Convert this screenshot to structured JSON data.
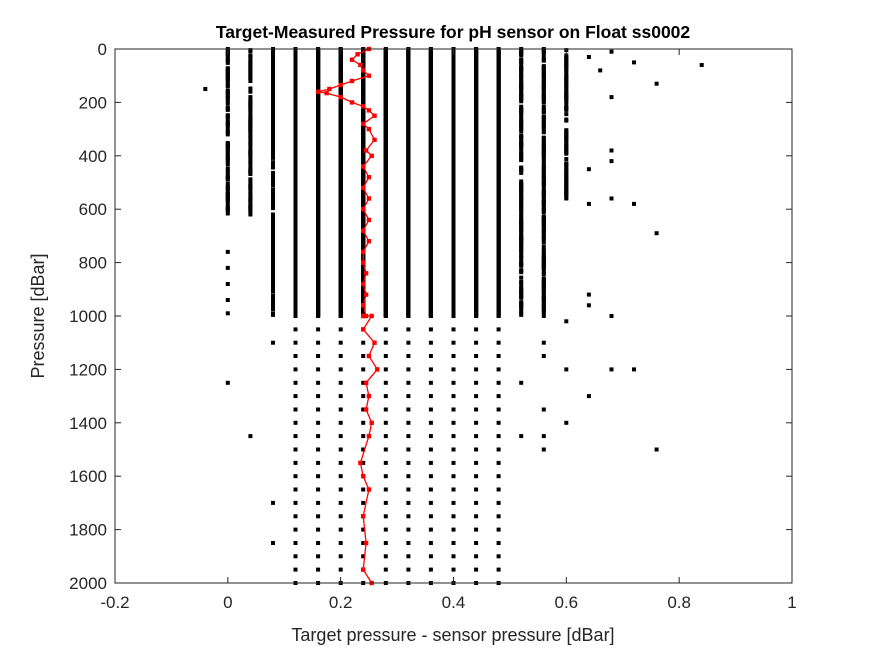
{
  "chart_data": {
    "type": "scatter",
    "title": "Target-Measured Pressure for pH sensor on Float ss0002",
    "xlabel": "Target pressure - sensor pressure [dBar]",
    "ylabel": "Pressure [dBar]",
    "xlim": [
      -0.2,
      1
    ],
    "ylim": [
      0,
      2000
    ],
    "y_reversed": true,
    "grid": false,
    "xticks": [
      -0.2,
      0,
      0.2,
      0.4,
      0.6,
      0.8,
      1
    ],
    "xtick_labels": [
      "-0.2",
      "0",
      "0.2",
      "0.4",
      "0.6",
      "0.8",
      "1"
    ],
    "yticks": [
      0,
      200,
      400,
      600,
      800,
      1000,
      1200,
      1400,
      1600,
      1800,
      2000
    ],
    "ytick_labels": [
      "0",
      "200",
      "400",
      "600",
      "800",
      "1000",
      "1200",
      "1400",
      "1600",
      "1800",
      "2000"
    ],
    "colors": {
      "scatter": "#000000",
      "mean_line": "#ff0000",
      "axes": "#262626"
    },
    "scatter_series": {
      "shallow_columns": [
        {
          "x": 0.12,
          "p_top": 0,
          "p_bottom": 1000,
          "dense": true
        },
        {
          "x": 0.16,
          "p_top": 0,
          "p_bottom": 1000,
          "dense": true
        },
        {
          "x": 0.2,
          "p_top": 0,
          "p_bottom": 1000,
          "dense": true
        },
        {
          "x": 0.24,
          "p_top": 0,
          "p_bottom": 1000,
          "dense": true
        },
        {
          "x": 0.28,
          "p_top": 0,
          "p_bottom": 1000,
          "dense": true
        },
        {
          "x": 0.32,
          "p_top": 0,
          "p_bottom": 1000,
          "dense": true
        },
        {
          "x": 0.36,
          "p_top": 0,
          "p_bottom": 1000,
          "dense": true
        },
        {
          "x": 0.4,
          "p_top": 0,
          "p_bottom": 1000,
          "dense": true
        },
        {
          "x": 0.44,
          "p_top": 0,
          "p_bottom": 1000,
          "dense": true
        },
        {
          "x": 0.48,
          "p_top": 0,
          "p_bottom": 1000,
          "dense": true
        },
        {
          "x": 0.08,
          "p_top": 0,
          "p_bottom": 1000,
          "dense": false
        },
        {
          "x": 0.52,
          "p_top": 0,
          "p_bottom": 1000,
          "dense": false
        },
        {
          "x": 0.04,
          "p_top": 0,
          "p_bottom": 620,
          "dense": false
        },
        {
          "x": 0.56,
          "p_top": 0,
          "p_bottom": 1000,
          "dense": false
        },
        {
          "x": 0.6,
          "p_top": 0,
          "p_bottom": 560,
          "dense": false
        },
        {
          "x": 0.0,
          "p_top": 0,
          "p_bottom": 620,
          "dense": false
        }
      ],
      "deep_grid": {
        "x": [
          0.12,
          0.16,
          0.2,
          0.24,
          0.28,
          0.32,
          0.36,
          0.4,
          0.44,
          0.48
        ],
        "p_from": 1000,
        "p_to": 2000,
        "p_step": 50
      },
      "scattered_points": [
        {
          "x": -0.04,
          "y": 150
        },
        {
          "x": 0.72,
          "y": 50
        },
        {
          "x": 0.84,
          "y": 60
        },
        {
          "x": 0.64,
          "y": 30
        },
        {
          "x": 0.68,
          "y": 10
        },
        {
          "x": 0.68,
          "y": 180
        },
        {
          "x": 0.76,
          "y": 130
        },
        {
          "x": 0.66,
          "y": 80
        },
        {
          "x": 0.68,
          "y": 380
        },
        {
          "x": 0.68,
          "y": 420
        },
        {
          "x": 0.64,
          "y": 450
        },
        {
          "x": 0.68,
          "y": 560
        },
        {
          "x": 0.64,
          "y": 580
        },
        {
          "x": 0.72,
          "y": 580
        },
        {
          "x": 0.76,
          "y": 690
        },
        {
          "x": 0.64,
          "y": 920
        },
        {
          "x": 0.64,
          "y": 960
        },
        {
          "x": 0.68,
          "y": 1000
        },
        {
          "x": 0.0,
          "y": 760
        },
        {
          "x": 0.0,
          "y": 820
        },
        {
          "x": 0.0,
          "y": 880
        },
        {
          "x": 0.0,
          "y": 940
        },
        {
          "x": 0.0,
          "y": 990
        },
        {
          "x": 0.0,
          "y": 1250
        },
        {
          "x": 0.04,
          "y": 1450
        },
        {
          "x": 0.08,
          "y": 1100
        },
        {
          "x": 0.08,
          "y": 1700
        },
        {
          "x": 0.08,
          "y": 1850
        },
        {
          "x": 0.52,
          "y": 1250
        },
        {
          "x": 0.52,
          "y": 1450
        },
        {
          "x": 0.56,
          "y": 1100
        },
        {
          "x": 0.56,
          "y": 1150
        },
        {
          "x": 0.56,
          "y": 1350
        },
        {
          "x": 0.56,
          "y": 1450
        },
        {
          "x": 0.56,
          "y": 1500
        },
        {
          "x": 0.6,
          "y": 1200
        },
        {
          "x": 0.6,
          "y": 1400
        },
        {
          "x": 0.64,
          "y": 1300
        },
        {
          "x": 0.68,
          "y": 1200
        },
        {
          "x": 0.72,
          "y": 1200
        },
        {
          "x": 0.76,
          "y": 1500
        },
        {
          "x": 0.6,
          "y": 1020
        }
      ]
    },
    "mean_line": {
      "x": [
        0.25,
        0.23,
        0.22,
        0.235,
        0.24,
        0.25,
        0.22,
        0.2,
        0.18,
        0.16,
        0.175,
        0.2,
        0.22,
        0.24,
        0.25,
        0.26,
        0.24,
        0.25,
        0.26,
        0.245,
        0.255,
        0.24,
        0.25,
        0.24,
        0.25,
        0.24,
        0.25,
        0.24,
        0.25,
        0.24,
        0.24,
        0.245,
        0.24,
        0.245,
        0.24,
        0.245,
        0.24,
        0.24,
        0.255,
        0.24,
        0.26,
        0.25,
        0.265,
        0.245,
        0.25,
        0.245,
        0.255,
        0.25,
        0.235,
        0.24,
        0.25,
        0.24,
        0.245,
        0.24,
        0.255
      ],
      "y": [
        0,
        20,
        40,
        60,
        80,
        100,
        120,
        135,
        150,
        160,
        165,
        180,
        200,
        215,
        230,
        250,
        280,
        300,
        340,
        380,
        400,
        440,
        480,
        520,
        560,
        600,
        640,
        680,
        720,
        760,
        800,
        840,
        880,
        920,
        960,
        1000,
        1000,
        1000,
        1000,
        1050,
        1100,
        1150,
        1200,
        1250,
        1300,
        1350,
        1400,
        1450,
        1550,
        1600,
        1650,
        1750,
        1850,
        1950,
        2000
      ]
    }
  }
}
